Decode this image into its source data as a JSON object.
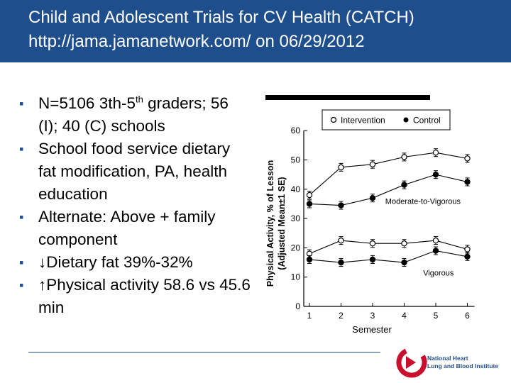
{
  "slide": {
    "title_line1": "Child and Adolescent Trials for CV Health (CATCH)",
    "title_line2": "http://jama.jamanetwork.com/ on 06/29/2012",
    "bullets": [
      {
        "pre": "N=5106 3th-5",
        "sup": "th",
        "post": " graders; 56 (I); 40 (C) schools"
      },
      {
        "pre": "School food service dietary fat modification, PA, health education",
        "sup": "",
        "post": ""
      },
      {
        "pre": "Alternate: Above + family component",
        "sup": "",
        "post": ""
      },
      {
        "pre": "↓Dietary fat 39%-32%",
        "sup": "",
        "post": ""
      },
      {
        "pre": "↑Physical activity 58.6 vs 45.6 min",
        "sup": "",
        "post": ""
      }
    ],
    "logo": {
      "line1": "National Heart",
      "line2": "Lung and Blood Institute"
    },
    "colors": {
      "title_bg": "#1f4e8c",
      "bullet": "#1f4e8c",
      "logo_red": "#c8102e"
    }
  },
  "chart_data": {
    "type": "line",
    "title": "",
    "xlabel": "Semester",
    "ylabel_line1": "Physical Activity, % of Lesson",
    "ylabel_line2": "(Adjusted Mean±1 SE)",
    "x": [
      1,
      2,
      3,
      4,
      5,
      6
    ],
    "ylim": [
      0,
      60
    ],
    "yticks": [
      0,
      10,
      20,
      30,
      40,
      50,
      60
    ],
    "legend": [
      {
        "name": "Intervention",
        "marker": "open-circle"
      },
      {
        "name": "Control",
        "marker": "filled-circle"
      }
    ],
    "series": [
      {
        "name": "Intervention",
        "group": "Moderate-to-Vigorous",
        "marker": "open",
        "values": [
          38,
          47.5,
          48.5,
          51,
          52.5,
          50.5
        ]
      },
      {
        "name": "Control",
        "group": "Moderate-to-Vigorous",
        "marker": "filled",
        "values": [
          35,
          34.5,
          37,
          41.5,
          45,
          42.5
        ]
      },
      {
        "name": "Intervention",
        "group": "Vigorous",
        "marker": "open",
        "values": [
          18,
          22.5,
          21.5,
          21.5,
          22.5,
          19.5
        ]
      },
      {
        "name": "Control",
        "group": "Vigorous",
        "marker": "filled",
        "values": [
          16,
          15,
          16,
          15,
          19,
          17
        ]
      }
    ],
    "annotations": [
      {
        "text": "Moderate-to-Vigorous",
        "x": 3.4,
        "y": 35
      },
      {
        "text": "Vigorous",
        "x": 4.6,
        "y": 10.5
      }
    ]
  }
}
